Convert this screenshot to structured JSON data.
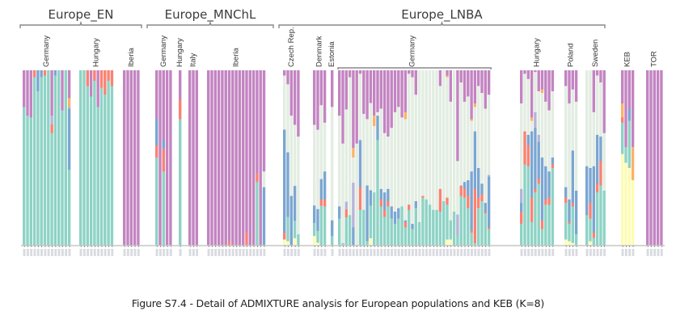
{
  "caption": "Figure S7.4 - Detail of ADMIXTURE analysis for European populations and KEB (K=8)",
  "chart_data": {
    "type": "stacked-bar",
    "title": "Detail of ADMIXTURE analysis for European populations and KEB (K=8)",
    "xlabel": "",
    "ylabel": "",
    "ylim": [
      0,
      1
    ],
    "K": 8,
    "components": [
      {
        "name": "K1",
        "color": "#c384c1"
      },
      {
        "name": "K2",
        "color": "#e3ede2"
      },
      {
        "name": "K3",
        "color": "#fbb26a"
      },
      {
        "name": "K4",
        "color": "#7ba6d1"
      },
      {
        "name": "K5",
        "color": "#b7b3d9"
      },
      {
        "name": "K6",
        "color": "#f98273"
      },
      {
        "name": "K7",
        "color": "#8ed3c5"
      },
      {
        "name": "K8",
        "color": "#fdfcb3"
      }
    ],
    "component_order_top_to_bottom": [
      "K1",
      "K3",
      "K2",
      "K5",
      "K4",
      "K6",
      "K7",
      "K8"
    ],
    "groups": [
      {
        "name": "Europe_EN",
        "populations": [
          "Germany",
          "Hungary",
          "Iberia"
        ]
      },
      {
        "name": "Europe_MNChL",
        "populations": [
          "Germany",
          "Hungary",
          "Italy",
          "Iberia"
        ]
      },
      {
        "name": "Europe_LNBA",
        "populations": [
          "Czech Rep.",
          "Denmark",
          "Estonia",
          "Germany",
          "Hungary",
          "Poland",
          "Sweden"
        ]
      },
      {
        "name": "",
        "populations": [
          "KEB"
        ]
      },
      {
        "name": "",
        "populations": [
          "TOR"
        ]
      }
    ],
    "populations": [
      {
        "group": 0,
        "label": "Germany",
        "samples": [
          {
            "K1": 0.21,
            "K7": 0.79
          },
          {
            "K1": 0.26,
            "K7": 0.74
          },
          {
            "K1": 0.27,
            "K7": 0.73
          },
          {
            "K6": 0.04,
            "K7": 0.96
          },
          {
            "K4": 0.12,
            "K7": 0.88
          },
          {
            "K4": 0.04,
            "K7": 0.96
          },
          {
            "K6": 0.03,
            "K7": 0.97
          },
          {
            "K7": 1.0
          },
          {
            "K1": 0.26,
            "K5": 0.05,
            "K6": 0.05,
            "K7": 0.64
          },
          {
            "K4": 0.03,
            "K7": 0.97
          },
          {
            "K7": 1.0
          },
          {
            "K1": 0.23,
            "K7": 0.77
          },
          {
            "K7": 1.0
          },
          {
            "K1": 0.16,
            "K3": 0.05,
            "K4": 0.35,
            "K5": 0.01,
            "K7": 0.43
          }
        ]
      },
      {
        "group": 0,
        "label": "Hungary",
        "samples": [
          {
            "K7": 1.0
          },
          {
            "K7": 1.0
          },
          {
            "K6": 0.09,
            "K7": 0.91
          },
          {
            "K1": 0.15,
            "K7": 0.85
          },
          {
            "K6": 0.06,
            "K7": 0.94
          },
          {
            "K1": 0.21,
            "K7": 0.79
          },
          {
            "K6": 0.1,
            "K7": 0.9
          },
          {
            "K6": 0.14,
            "K7": 0.86
          },
          {
            "K6": 0.06,
            "K7": 0.94
          },
          {
            "K6": 0.09,
            "K7": 0.91
          }
        ]
      },
      {
        "group": 0,
        "label": "Iberia",
        "samples": [
          {
            "K1": 1.0
          },
          {
            "K1": 1.0
          },
          {
            "K1": 1.0
          },
          {
            "K1": 1.0
          },
          {
            "K1": 1.0
          }
        ]
      },
      {
        "group": 1,
        "label": "Germany",
        "samples": [
          {
            "K1": 0.28,
            "K4": 0.15,
            "K6": 0.07,
            "K7": 0.5
          },
          {
            "K1": 1.0
          },
          {
            "K1": 0.4,
            "K4": 0.05,
            "K6": 0.13,
            "K7": 0.42
          },
          {
            "K1": 1.0
          },
          {
            "K1": 1.0
          }
        ]
      },
      {
        "group": 1,
        "label": "Hungary",
        "samples": [
          {
            "K1": 0.17,
            "K6": 0.11,
            "K7": 0.72
          }
        ]
      },
      {
        "group": 1,
        "label": "Italy",
        "samples": [
          {
            "K1": 1.0
          },
          {
            "K1": 1.0
          },
          {
            "K1": 1.0
          }
        ]
      },
      {
        "group": 1,
        "label": "Iberia",
        "samples": [
          {
            "K1": 1.0
          },
          {
            "K1": 1.0
          },
          {
            "K1": 1.0
          },
          {
            "K1": 1.0
          },
          {
            "K1": 1.0
          },
          {
            "K1": 1.0
          },
          {
            "K1": 0.98,
            "K6": 0.02
          },
          {
            "K1": 1.0
          },
          {
            "K1": 1.0
          },
          {
            "K1": 1.0
          },
          {
            "K1": 1.0
          },
          {
            "K1": 0.93,
            "K6": 0.07
          },
          {
            "K1": 1.0
          },
          {
            "K1": 1.0
          },
          {
            "K1": 0.59,
            "K6": 0.05,
            "K7": 0.36
          },
          {
            "K1": 1.0
          },
          {
            "K1": 0.58,
            "K2": 0.09,
            "K4": 0.33
          }
        ]
      },
      {
        "group": 2,
        "label": "Czech Rep.",
        "samples": [
          {
            "K1": 0.03,
            "K2": 0.31,
            "K4": 0.59,
            "K6": 0.04,
            "K8": 0.03
          },
          {
            "K1": 0.08,
            "K2": 0.39,
            "K4": 0.37,
            "K7": 0.14,
            "K8": 0.02
          },
          {
            "K1": 0.26,
            "K2": 0.46,
            "K4": 0.28
          },
          {
            "K1": 0.25,
            "K2": 0.28,
            "K4": 0.16,
            "K7": 0.08,
            "K8": 0.03
          },
          {
            "K1": 0.38,
            "K2": 0.56,
            "K7": 0.06
          }
        ]
      },
      {
        "group": 2,
        "label": "Denmark",
        "samples": [
          {
            "K1": 0.25,
            "K2": 0.37,
            "K4": 0.08,
            "K7": 0.06,
            "K8": 0.04
          },
          {
            "K1": 0.3,
            "K2": 0.4,
            "K4": 0.11,
            "K7": 0.06,
            "K8": 0.01
          },
          {
            "K1": 0.17,
            "K2": 0.36,
            "K4": 0.1,
            "K6": 0.03,
            "K7": 0.19
          },
          {
            "K1": 0.3,
            "K2": 0.28,
            "K4": 0.16,
            "K6": 0.04,
            "K7": 0.22
          }
        ]
      },
      {
        "group": 2,
        "label": "Estonia",
        "samples": [
          {
            "K1": 0.21,
            "K2": 0.65,
            "K4": 0.09,
            "K7": 0.05
          }
        ]
      },
      {
        "group": 2,
        "label": "Germany",
        "samples": [
          {
            "K1": 0.26,
            "K2": 0.52,
            "K4": 0.07,
            "K7": 0.15
          },
          {
            "K1": 0.42,
            "K2": 0.57,
            "K7": 0.01
          },
          {
            "K1": 0.2,
            "K2": 0.47,
            "K5": 0.04,
            "K6": 0.04,
            "K7": 0.14
          },
          {
            "K1": 0.04,
            "K2": 0.79,
            "K7": 0.17
          },
          {
            "K1": 0.4,
            "K3": 0.05,
            "K2": 0.13,
            "K5": 0.23,
            "K4": 0.09,
            "K7": 0.0
          },
          {
            "K1": 0.42,
            "K2": 0.58
          },
          {
            "K1": 0.02,
            "K2": 0.38,
            "K4": 0.27,
            "K6": 0.13,
            "K7": 0.2
          },
          {
            "K1": 0.25,
            "K2": 0.55,
            "K7": 0.2
          },
          {
            "K1": 0.28,
            "K2": 0.38,
            "K4": 0.32,
            "K7": 0.02
          },
          {
            "K1": 0.15,
            "K2": 0.4,
            "K4": 0.07,
            "K7": 0.15,
            "K8": 0.03
          },
          {
            "K1": 0.26,
            "K3": 0.06,
            "K2": 0.38,
            "K7": 0.3
          },
          {
            "K1": 0.24,
            "K2": 0.02,
            "K4": 0.14,
            "K7": 0.6
          },
          {
            "K1": 0.22,
            "K2": 0.46,
            "K4": 0.06,
            "K6": 0.04,
            "K7": 0.22
          },
          {
            "K1": 0.36,
            "K2": 0.34,
            "K4": 0.1,
            "K6": 0.04,
            "K7": 0.16
          },
          {
            "K1": 0.38,
            "K2": 0.3,
            "K4": 0.07,
            "K6": 0.03,
            "K7": 0.22
          },
          {
            "K1": 0.33,
            "K2": 0.45,
            "K4": 0.07,
            "K7": 0.15
          },
          {
            "K1": 0.24,
            "K2": 0.57,
            "K4": 0.07,
            "K7": 0.12
          },
          {
            "K1": 0.21,
            "K2": 0.58,
            "K4": 0.06,
            "K7": 0.15
          },
          {
            "K1": 0.27,
            "K2": 0.51,
            "K7": 0.22
          },
          {
            "K1": 0.24,
            "K3": 0.04,
            "K2": 0.58,
            "K4": 0.01,
            "K6": 0.03,
            "K7": 0.1
          },
          {
            "K1": 0.02,
            "K2": 0.75,
            "K6": 0.03,
            "K7": 0.2
          },
          {
            "K1": 0.04,
            "K2": 0.84,
            "K4": 0.03,
            "K7": 0.09
          },
          {
            "K1": 0.14,
            "K2": 0.61,
            "K4": 0.04,
            "K7": 0.21
          },
          {
            "K2": 0.87,
            "K7": 0.13
          },
          {
            "K2": 0.72,
            "K6": 0.01,
            "K7": 0.27
          },
          {
            "K2": 0.74,
            "K7": 0.26
          },
          {
            "K2": 0.77,
            "K7": 0.23
          },
          {
            "K2": 0.8,
            "K7": 0.2
          },
          {
            "K2": 0.8,
            "K7": 0.2
          },
          {
            "K1": 0.09,
            "K2": 0.59,
            "K6": 0.13,
            "K7": 0.19
          },
          {
            "K2": 0.75,
            "K7": 0.25
          },
          {
            "K1": 0.03,
            "K3": 0.01,
            "K2": 0.69,
            "K6": 0.04,
            "K7": 0.2,
            "K8": 0.03
          },
          {
            "K1": 0.18,
            "K2": 0.68,
            "K7": 0.11,
            "K8": 0.03
          },
          {
            "K2": 0.81,
            "K7": 0.19
          },
          {
            "K1": 0.39,
            "K2": 0.23,
            "K5": 0.09,
            "K7": 0.04,
            "K4": 0.0,
            "K8": 0.0,
            "K6": 0.0,
            "K2b": 0
          },
          {
            "K1": 0.07,
            "K2": 0.59,
            "K6": 0.06,
            "K7": 0.28
          },
          {
            "K1": 0.18,
            "K2": 0.46,
            "K4": 0.04,
            "K6": 0.05,
            "K7": 0.27
          },
          {
            "K1": 0.15,
            "K2": 0.48,
            "K4": 0.09,
            "K6": 0.07,
            "K7": 0.21
          },
          {
            "K1": 0.28,
            "K3": 0.01,
            "K2": 0.29,
            "K4": 0.34,
            "K6": 0.01,
            "K7": 0.07
          },
          {
            "K1": 0.19,
            "K3": 0.02,
            "K2": 0.14,
            "K4": 0.33,
            "K6": 0.31,
            "K7": 0.01
          },
          {
            "K1": 0.09,
            "K2": 0.47,
            "K4": 0.17,
            "K6": 0.06,
            "K7": 0.21
          },
          {
            "K1": 0.13,
            "K2": 0.52,
            "K4": 0.06,
            "K6": 0.04,
            "K7": 0.25
          },
          {
            "K1": 0.22,
            "K2": 0.54,
            "K4": 0.05,
            "K6": 0.01,
            "K7": 0.18
          },
          {
            "K1": 0.14,
            "K2": 0.46,
            "K4": 0.29,
            "K5": 0.01,
            "K6": 0.01,
            "K7": 0.09
          }
        ]
      },
      {
        "group": 2,
        "label": "Hungary",
        "samples": [
          {
            "K1": 0.19,
            "K2": 0.49,
            "K4": 0.05,
            "K5": 0.08,
            "K6": 0.07,
            "K7": 0.12
          },
          {
            "K1": 0.02,
            "K2": 0.33,
            "K6": 0.19,
            "K7": 0.46
          },
          {
            "K1": 0.05,
            "K2": 0.32,
            "K4": 0.06,
            "K6": 0.12,
            "K7": 0.45
          },
          {
            "K1": 0.27,
            "K3": 0.02,
            "K2": 0.06,
            "K4": 0.38,
            "K6": 0.14,
            "K7": 0.13
          },
          {
            "K1": 0.01,
            "K2": 0.23,
            "K4": 0.35,
            "K5": 0.09,
            "K6": 0.02,
            "K7": 0.3
          },
          {
            "K1": 0.12,
            "K2": 0.25,
            "K4": 0.21,
            "K5": 0.04,
            "K6": 0.03,
            "K7": 0.35
          },
          {
            "K1": 0.11,
            "K3": 0.02,
            "K2": 0.37,
            "K4": 0.36,
            "K6": 0.05,
            "K7": 0.09
          },
          {
            "K1": 0.18,
            "K2": 0.37,
            "K4": 0.19,
            "K6": 0.03,
            "K7": 0.23
          },
          {
            "K1": 0.23,
            "K2": 0.35,
            "K4": 0.15,
            "K6": 0.04,
            "K7": 0.23
          },
          {
            "K1": 0.12,
            "K2": 0.38,
            "K4": 0.04,
            "K6": 0.02,
            "K7": 0.44
          }
        ]
      },
      {
        "group": 2,
        "label": "Poland",
        "samples": [
          {
            "K1": 0.09,
            "K2": 0.58,
            "K4": 0.06,
            "K6": 0.03,
            "K7": 0.21,
            "K8": 0.03
          },
          {
            "K1": 0.19,
            "K2": 0.55,
            "K4": 0.13,
            "K6": 0.01,
            "K7": 0.1,
            "K8": 0.02
          },
          {
            "K1": 0.11,
            "K2": 0.35,
            "K4": 0.3,
            "K6": 0.02,
            "K7": 0.21,
            "K8": 0.01
          },
          {
            "K1": 0.18,
            "K2": 0.51,
            "K4": 0.25,
            "K7": 0.06
          }
        ]
      },
      {
        "group": 2,
        "label": "Sweden",
        "samples": [
          {
            "K2": 0.55,
            "K4": 0.28,
            "K7": 0.17
          },
          {
            "K2": 0.56,
            "K4": 0.2,
            "K6": 0.09,
            "K7": 0.13,
            "K8": 0.02
          },
          {
            "K1": 0.24,
            "K2": 0.31,
            "K4": 0.38,
            "K6": 0.03,
            "K7": 0.04
          },
          {
            "K1": 0.03,
            "K2": 0.34,
            "K4": 0.28,
            "K6": 0.05,
            "K7": 0.3
          },
          {
            "K1": 0.07,
            "K2": 0.31,
            "K4": 0.14,
            "K6": 0.14,
            "K7": 0.34
          },
          {
            "K1": 0.36,
            "K2": 0.33,
            "K7": 0.31
          }
        ]
      },
      {
        "group": 3,
        "label": "KEB",
        "samples": [
          {
            "K1": 0.19,
            "K3": 0.08,
            "K6": 0.03,
            "K7": 0.18,
            "K8": 0.52
          },
          {
            "K1": 0.44,
            "K7": 0.09,
            "K8": 0.47
          },
          {
            "K1": 0.22,
            "K4": 0.07,
            "K7": 0.27,
            "K8": 0.44
          },
          {
            "K1": 0.44,
            "K3": 0.19,
            "K8": 0.37
          }
        ]
      },
      {
        "group": 4,
        "label": "TOR",
        "samples": [
          {
            "K1": 1.0
          },
          {
            "K1": 1.0
          },
          {
            "K1": 1.0
          },
          {
            "K1": 1.0
          },
          {
            "K1": 1.0
          }
        ]
      }
    ]
  }
}
